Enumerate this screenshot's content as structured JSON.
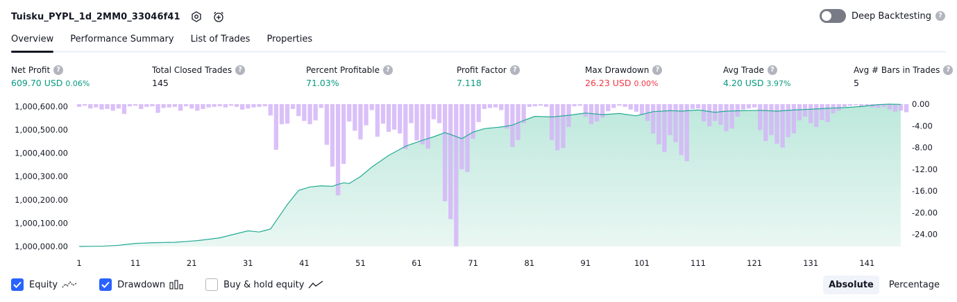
{
  "header": {
    "strategy_name": "Tuisku_PYPL_1d_2MM0_33046f41",
    "settings_icon": "gear-icon",
    "alert_icon": "alarm-add-icon"
  },
  "deep_backtesting": {
    "label": "Deep Backtesting",
    "help": "?",
    "enabled": false
  },
  "tabs": [
    {
      "label": "Overview",
      "active": true
    },
    {
      "label": "Performance Summary",
      "active": false
    },
    {
      "label": "List of Trades",
      "active": false
    },
    {
      "label": "Properties",
      "active": false
    }
  ],
  "metrics": {
    "help": "?",
    "net_profit": {
      "label": "Net Profit",
      "value": "609.70 USD",
      "pct": "0.06%"
    },
    "total_closed_trades": {
      "label": "Total Closed Trades",
      "value": "145"
    },
    "percent_profitable": {
      "label": "Percent Profitable",
      "value": "71.03%"
    },
    "profit_factor": {
      "label": "Profit Factor",
      "value": "7.118"
    },
    "max_drawdown": {
      "label": "Max Drawdown",
      "value": "26.23 USD",
      "pct": "0.00%"
    },
    "avg_trade": {
      "label": "Avg Trade",
      "value": "4.20 USD",
      "pct": "3.97%"
    },
    "avg_bars": {
      "label": "Avg # Bars in Trades",
      "value": "5"
    }
  },
  "legend": {
    "equity": {
      "label": "Equity",
      "checked": true
    },
    "drawdown": {
      "label": "Drawdown",
      "checked": true
    },
    "buy_hold": {
      "label": "Buy & hold equity",
      "checked": false
    }
  },
  "modes": {
    "absolute": "Absolute",
    "percentage": "Percentage",
    "active": "Absolute"
  },
  "colors": {
    "equity_line": "#22ab94",
    "equity_fill": "#cdeee6",
    "drawdown_bar": "#d3b5f7",
    "positive": "#089981",
    "negative": "#f23645",
    "accent": "#2962ff"
  },
  "chart_data": {
    "type": "area",
    "x_ticks": [
      1,
      11,
      21,
      31,
      41,
      51,
      61,
      71,
      81,
      91,
      101,
      111,
      121,
      131,
      141
    ],
    "x_ticks_text": [
      "1",
      "11",
      "21",
      "31",
      "41",
      "51",
      "61",
      "71",
      "81",
      "91",
      "101",
      "111",
      "121",
      "131",
      "141"
    ],
    "y_left_ticks": [
      "1,000,600.00",
      "1,000,500.00",
      "1,000,400.00",
      "1,000,300.00",
      "1,000,200.00",
      "1,000,100.00",
      "1,000,000.00"
    ],
    "y_left_values": [
      1000600,
      1000500,
      1000400,
      1000300,
      1000200,
      1000100,
      1000000
    ],
    "y_right_ticks": [
      "0.00",
      "-4.00",
      "-8.00",
      "-12.00",
      "-16.00",
      "-20.00",
      "-24.00"
    ],
    "y_right_values": [
      0,
      -4,
      -8,
      -12,
      -16,
      -20,
      -24
    ],
    "x_range": [
      1,
      147
    ],
    "y_left_range": [
      1000000,
      1000610
    ],
    "y_right_range": [
      0,
      -26.23
    ],
    "series": [
      {
        "name": "Equity",
        "equity_anchors": [
          [
            1,
            1000000
          ],
          [
            5,
            1000001
          ],
          [
            8,
            1000005
          ],
          [
            11,
            1000013
          ],
          [
            14,
            1000016
          ],
          [
            18,
            1000018
          ],
          [
            22,
            1000025
          ],
          [
            26,
            1000037
          ],
          [
            29,
            1000055
          ],
          [
            31,
            1000067
          ],
          [
            33,
            1000062
          ],
          [
            35,
            1000075
          ],
          [
            38,
            1000180
          ],
          [
            40,
            1000240
          ],
          [
            42,
            1000255
          ],
          [
            44,
            1000260
          ],
          [
            46,
            1000258
          ],
          [
            47,
            1000266
          ],
          [
            48,
            1000273
          ],
          [
            49,
            1000270
          ],
          [
            51,
            1000300
          ],
          [
            53,
            1000340
          ],
          [
            56,
            1000390
          ],
          [
            59,
            1000430
          ],
          [
            62,
            1000455
          ],
          [
            64,
            1000470
          ],
          [
            66,
            1000488
          ],
          [
            67,
            1000480
          ],
          [
            69,
            1000462
          ],
          [
            71,
            1000490
          ],
          [
            73,
            1000505
          ],
          [
            76,
            1000512
          ],
          [
            78,
            1000520
          ],
          [
            80,
            1000540
          ],
          [
            82,
            1000558
          ],
          [
            85,
            1000555
          ],
          [
            88,
            1000562
          ],
          [
            91,
            1000572
          ],
          [
            94,
            1000565
          ],
          [
            97,
            1000570
          ],
          [
            100,
            1000560
          ],
          [
            103,
            1000578
          ],
          [
            106,
            1000582
          ],
          [
            108,
            1000580
          ],
          [
            111,
            1000585
          ],
          [
            114,
            1000575
          ],
          [
            116,
            1000580
          ],
          [
            119,
            1000582
          ],
          [
            122,
            1000583
          ],
          [
            125,
            1000580
          ],
          [
            128,
            1000585
          ],
          [
            131,
            1000588
          ],
          [
            134,
            1000592
          ],
          [
            137,
            1000595
          ],
          [
            140,
            1000600
          ],
          [
            143,
            1000608
          ],
          [
            145,
            1000610
          ],
          [
            147,
            1000609
          ]
        ]
      },
      {
        "name": "Drawdown",
        "values": [
          -0.5,
          -0.3,
          -0.8,
          -0.6,
          -1.0,
          -0.9,
          -1.2,
          -0.8,
          -1.8,
          -0.4,
          -0.3,
          -0.9,
          -0.5,
          -0.4,
          -1.6,
          -0.7,
          -0.6,
          -0.5,
          -1.2,
          -0.4,
          -0.8,
          -1.2,
          -0.9,
          -0.6,
          -0.5,
          -0.4,
          -0.6,
          -0.3,
          -0.5,
          -1.0,
          -0.8,
          -0.6,
          -0.5,
          -0.4,
          -2.1,
          -8.4,
          -3.7,
          -3.6,
          -0.9,
          -2.2,
          -3.1,
          -3.7,
          -3.0,
          -0.7,
          -7.5,
          -11.5,
          -16.8,
          -11.0,
          -3.2,
          -4.9,
          -6.5,
          -3.9,
          -1.1,
          -6.0,
          -3.6,
          -5.1,
          -4.7,
          -5.4,
          -8.3,
          -3.5,
          -6.7,
          -7.4,
          -8.2,
          -2.8,
          -3.5,
          -17.9,
          -21.2,
          -26.2,
          -12.0,
          -12.5,
          -6.4,
          -3.3,
          -0.9,
          -0.7,
          -0.6,
          -1.1,
          -4.5,
          -7.9,
          -6.6,
          -3.5,
          -0.5,
          -0.4,
          -0.3,
          -0.5,
          -6.6,
          -8.5,
          -8.1,
          -4.2,
          -0.4,
          -0.3,
          -2.3,
          -3.7,
          -3.2,
          -2.5,
          -1.3,
          -0.7,
          -0.3,
          -0.5,
          -1.0,
          -1.4,
          -2.0,
          -3.1,
          -5.4,
          -7.4,
          -8.8,
          -5.7,
          -7.0,
          -9.4,
          -10.5,
          -0.9,
          -0.8,
          -3.2,
          -4.1,
          -3.1,
          -3.8,
          -5.0,
          -4.5,
          -2.3,
          -1.0,
          -0.8,
          -0.6,
          -4.8,
          -6.8,
          -5.7,
          -7.3,
          -8.0,
          -6.1,
          -5.4,
          -3.0,
          -2.3,
          -3.5,
          -4.2,
          -2.9,
          -3.3,
          -1.7,
          -1.2,
          -0.5,
          -0.3,
          -0.2,
          -0.4,
          -0.3,
          -0.6,
          -0.7,
          -0.5,
          -1.0,
          -1.4,
          -1.2,
          -1.5
        ]
      }
    ],
    "grid": false
  }
}
